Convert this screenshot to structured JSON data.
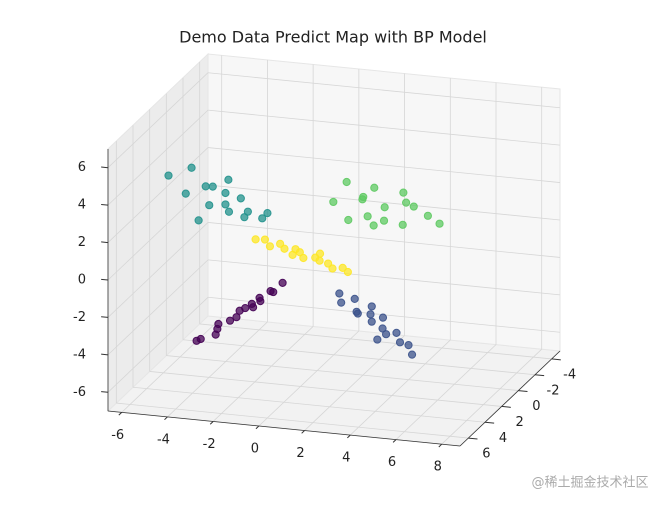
{
  "chart_data": {
    "type": "scatter3d",
    "title": "Demo Data Predict Map with BP Model",
    "xlim": [
      -6.6,
      8.8
    ],
    "ylim": [
      -5,
      7
    ],
    "zlim": [
      -7,
      7
    ],
    "xticks": [
      -6,
      -4,
      -2,
      0,
      2,
      4,
      6,
      8
    ],
    "yticks": [
      -4,
      -2,
      0,
      2,
      4,
      6
    ],
    "zticks": [
      -6,
      -4,
      -2,
      0,
      2,
      4,
      6
    ],
    "grid": true,
    "series": [
      {
        "color": "#440154",
        "x": [
          -3.6,
          -3.2,
          -2.8,
          -2.5,
          -2.1,
          -1.9,
          -1.6,
          -1.4,
          -1.2,
          -1.0,
          -0.7,
          -0.4,
          -0.1,
          0.2,
          -2.4,
          -1.1
        ],
        "y": [
          4.6,
          5.2,
          4.3,
          5.0,
          4.7,
          4.1,
          5.3,
          4.8,
          4.4,
          5.1,
          4.9,
          4.5,
          5.0,
          4.7,
          5.6,
          3.9
        ],
        "z": [
          -3.9,
          -3.5,
          -3.3,
          -2.7,
          -2.6,
          -2.3,
          -2.1,
          -1.8,
          -1.9,
          -1.4,
          -1.3,
          -0.9,
          -0.7,
          -0.3,
          -3.0,
          -1.6
        ]
      },
      {
        "color": "#3b528b",
        "x": [
          2.5,
          2.8,
          3.1,
          3.4,
          3.6,
          3.9,
          4.1,
          4.3,
          4.5,
          4.8,
          5.0,
          5.3,
          5.6,
          5.9,
          3.7,
          4.6
        ],
        "y": [
          4.2,
          4.8,
          4.0,
          4.6,
          5.0,
          4.3,
          4.7,
          3.9,
          4.5,
          4.9,
          4.2,
          4.6,
          4.4,
          4.8,
          3.6,
          5.4
        ],
        "z": [
          -0.8,
          -1.0,
          -1.1,
          -1.5,
          -1.4,
          -1.7,
          -1.9,
          -2.0,
          -2.3,
          -2.4,
          -2.6,
          -2.9,
          -3.1,
          -3.4,
          -1.6,
          -2.5
        ]
      },
      {
        "color": "#21918c",
        "x": [
          -4.5,
          -4.0,
          -3.6,
          -3.2,
          -2.9,
          -2.6,
          -2.3,
          -2.0,
          -1.7,
          -1.4,
          -1.1,
          -0.8,
          -2.5,
          -1.9,
          -3.0,
          -0.5
        ],
        "y": [
          5.5,
          4.8,
          5.2,
          4.6,
          5.0,
          5.4,
          4.7,
          5.1,
          4.5,
          4.9,
          5.3,
          4.4,
          3.8,
          5.8,
          6.0,
          4.6
        ],
        "z": [
          5.2,
          4.0,
          5.6,
          4.4,
          3.6,
          4.8,
          4.2,
          3.4,
          3.9,
          3.1,
          3.6,
          2.9,
          4.5,
          4.1,
          3.2,
          3.3
        ]
      },
      {
        "color": "#5ec962",
        "x": [
          1.8,
          2.2,
          2.6,
          3.0,
          3.3,
          3.6,
          3.9,
          4.2,
          4.5,
          4.8,
          5.1,
          5.5,
          5.9,
          3.4,
          2.9,
          4.4
        ],
        "y": [
          3.0,
          2.5,
          3.4,
          2.8,
          2.2,
          3.1,
          2.6,
          3.5,
          2.0,
          2.9,
          2.4,
          1.8,
          1.5,
          3.8,
          1.9,
          1.4
        ],
        "z": [
          3.5,
          4.4,
          2.8,
          3.7,
          4.1,
          2.5,
          3.3,
          3.0,
          3.9,
          2.6,
          3.4,
          2.7,
          2.2,
          4.3,
          2.4,
          3.1
        ]
      },
      {
        "color": "#fde725",
        "x": [
          -1.2,
          -0.9,
          -0.5,
          -0.2,
          0.1,
          0.4,
          0.7,
          1.0,
          1.3,
          1.6,
          1.9,
          2.2,
          2.5,
          2.8,
          0.6,
          1.4
        ],
        "y": [
          4.1,
          3.8,
          4.3,
          3.9,
          4.2,
          3.7,
          4.0,
          4.4,
          3.8,
          4.1,
          3.9,
          4.2,
          3.8,
          4.0,
          4.6,
          3.5
        ],
        "z": [
          1.6,
          1.5,
          1.4,
          1.4,
          1.3,
          1.1,
          1.1,
          1.0,
          0.8,
          0.8,
          0.6,
          0.5,
          0.4,
          0.3,
          1.2,
          0.9
        ]
      }
    ]
  },
  "watermark": "@稀土掘金技术社区"
}
